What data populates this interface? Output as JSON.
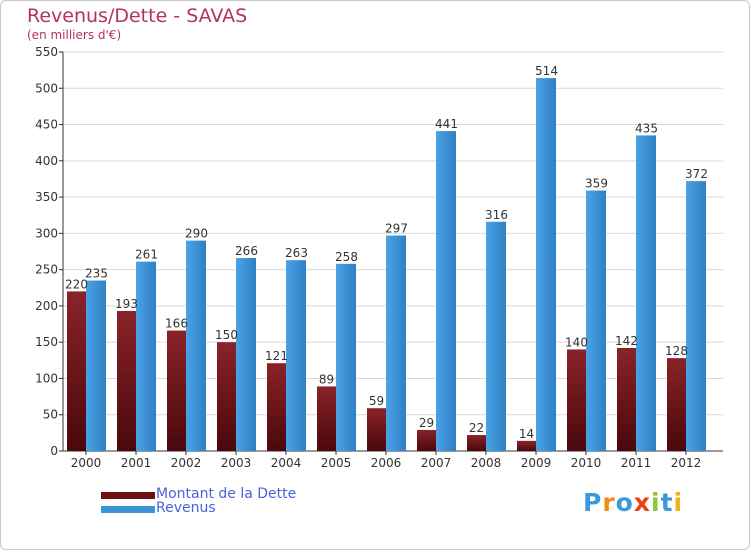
{
  "title": "Revenus/Dette - SAVAS",
  "subtitle": "(en milliers d'€)",
  "legend": [
    {
      "label": "Montant de la Dette",
      "color": "#6e0f14"
    },
    {
      "label": "Revenus",
      "color": "#3d93d8"
    }
  ],
  "logo": {
    "letters": [
      {
        "char": "P",
        "color": "#3a9ad9"
      },
      {
        "char": "r",
        "color": "#f08a1f"
      },
      {
        "char": "o",
        "color": "#3a9ad9"
      },
      {
        "char": "x",
        "color": "#e8421a"
      },
      {
        "char": "i",
        "color": "#8cc63f"
      },
      {
        "char": "t",
        "color": "#3a9ad9"
      },
      {
        "char": "i",
        "color": "#f2b21b"
      }
    ]
  },
  "chart_data": {
    "type": "bar",
    "categories": [
      "2000",
      "2001",
      "2002",
      "2003",
      "2004",
      "2005",
      "2006",
      "2007",
      "2008",
      "2009",
      "2010",
      "2011",
      "2012"
    ],
    "series": [
      {
        "name": "Montant de la Dette",
        "color": "#7a1419",
        "values": [
          220,
          193,
          166,
          150,
          121,
          89,
          59,
          29,
          22,
          14,
          140,
          142,
          128
        ]
      },
      {
        "name": "Revenus",
        "color": "#3d93d8",
        "values": [
          235,
          261,
          290,
          266,
          263,
          258,
          297,
          441,
          316,
          514,
          359,
          435,
          372
        ]
      }
    ],
    "title": "Revenus/Dette - SAVAS",
    "ylabel": "(en milliers d'€)",
    "ylim": [
      0,
      550
    ],
    "yticks": [
      0,
      50,
      100,
      150,
      200,
      250,
      300,
      350,
      400,
      450,
      500,
      550
    ],
    "grid": true,
    "legend_position": "bottom-left"
  }
}
